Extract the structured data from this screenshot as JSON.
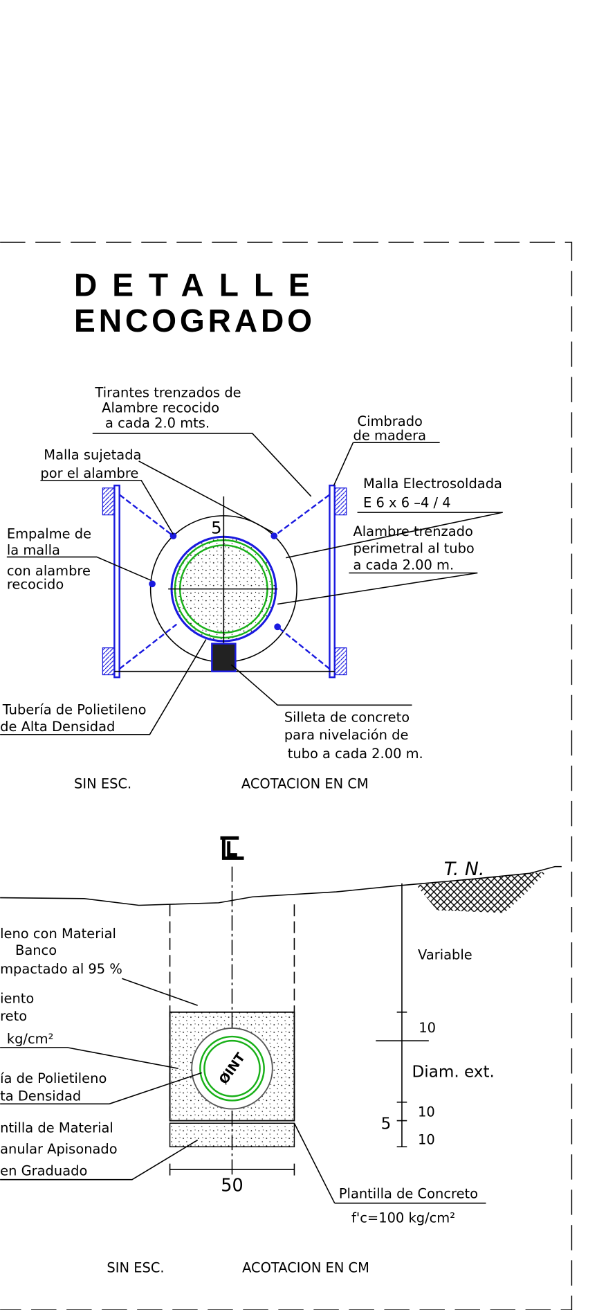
{
  "detail": {
    "title": [
      "DETALLE",
      "ENCOGRADO"
    ],
    "tirantes": [
      "Tirantes trenzados de",
      "Alambre recocido",
      "a cada 2.0 mts."
    ],
    "cimbrado": [
      "Cimbrado",
      "de madera"
    ],
    "malla_sujetada": [
      "Malla sujetada",
      "por el alambre"
    ],
    "malla_electro": [
      "Malla Electrosoldada",
      "E 6 x 6 –4 / 4"
    ],
    "empalme": [
      "Empalme de",
      "la malla",
      "con alambre",
      "recocido"
    ],
    "alambre": [
      "Alambre trenzado",
      "perimetral al tubo",
      "a cada 2.00 m."
    ],
    "dim": "5",
    "tuberia": [
      "Tubería de Polietileno",
      "de Alta Densidad"
    ],
    "silleta": [
      "Silleta de concreto",
      "para nivelación de",
      "tubo a cada 2.00 m."
    ],
    "notes": [
      "SIN ESC.",
      "ACOTACION EN CM"
    ]
  },
  "section": {
    "tn": "T. N.",
    "relleno": [
      "leno con Material",
      "Banco",
      "mpactado al 95 %"
    ],
    "acostillado": [
      "iento",
      "reto",
      "kg/cm²"
    ],
    "tuberia": [
      "ía de Polietileno",
      "ta Densidad"
    ],
    "plantilla_granular": [
      "ntilla de Material",
      "anular Apisonado",
      "en Graduado"
    ],
    "pipe_label": "ØINT",
    "dims": {
      "variable": "Variable",
      "top": "10",
      "diam": "Diam. ext.",
      "bottom": "10",
      "five": "5",
      "base": "10",
      "width": "50"
    },
    "plantilla_concreto": [
      "Plantilla de Concreto",
      "f'c=100 kg/cm²"
    ],
    "notes": [
      "SIN ESC.",
      "ACOTACION EN CM"
    ]
  }
}
